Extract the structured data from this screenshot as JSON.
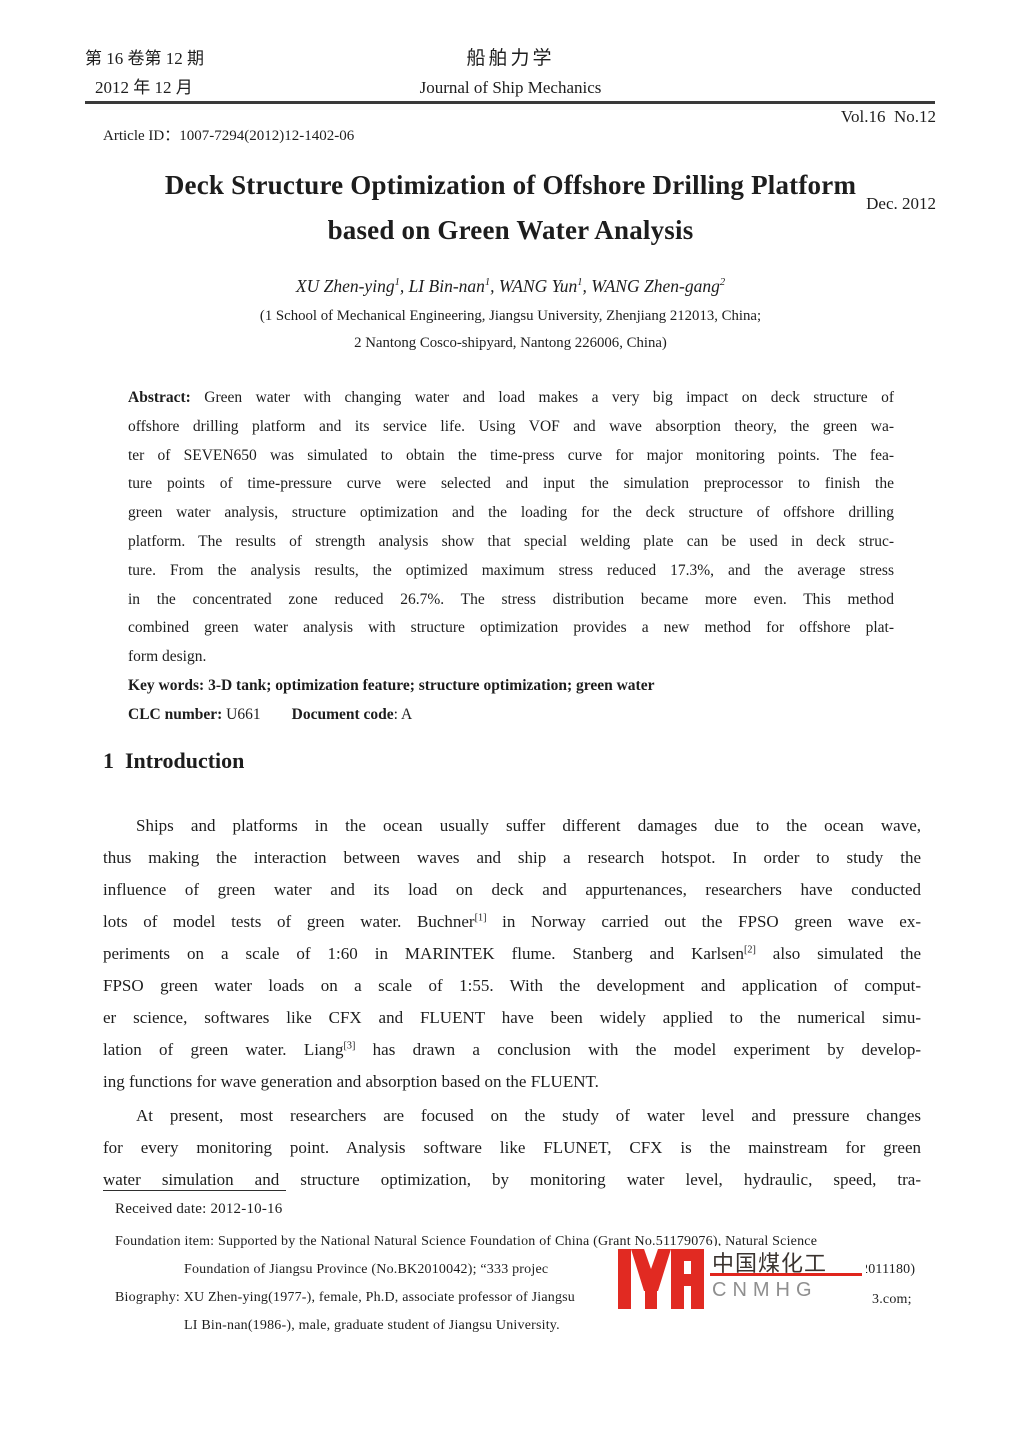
{
  "header": {
    "left_line1": "第 16 卷第 12 期",
    "left_line2": "2012 年 12 月",
    "center_line1": "船舶力学",
    "center_line2": "Journal of Ship Mechanics",
    "right_line1": "Vol.16  No.12",
    "right_line2": "Dec. 2012"
  },
  "article_id": "Article ID：1007-7294(2012)12-1402-06",
  "title_line1": "Deck Structure Optimization of Offshore Drilling Platform",
  "title_line2": "based on Green Water Analysis",
  "authors": "XU Zhen-ying^1^, LI Bin-nan^1^, WANG Yun^1^, WANG Zhen-gang^2^",
  "affiliation1": "(1 School of Mechanical Engineering, Jiangsu University, Zhenjiang 212013, China;",
  "affiliation2": "2 Nantong Cosco-shipyard, Nantong 226006, China)",
  "abstract_lines": [
    {
      "t": "**Abstract:** Green water with changing water and load makes a very big impact on deck structure of"
    },
    "offshore drilling platform and its service life. Using VOF and wave absorption theory, the green wa-",
    "ter of SEVEN650 was simulated to obtain the time-press curve for major monitoring points. The fea-",
    "ture points of time-pressure curve were selected and input the simulation preprocessor to finish the",
    "green water analysis, structure optimization and the loading for the deck structure of offshore drilling",
    "platform. The results of strength analysis show that special welding plate can be used in deck struc-",
    "ture. From the analysis results, the optimized maximum stress reduced 17.3%, and the average stress",
    "in the concentrated zone reduced 26.7%. The stress distribution became more even. This method",
    "combined green water analysis with structure optimization provides a new method for offshore plat-",
    {
      "t": "form design.",
      "j": false
    },
    {
      "t": "**Key words: 3-D tank; optimization feature; structure optimization; green water**",
      "j": false
    },
    {
      "t": "**CLC number:** U661        **Document code**: A",
      "j": false
    }
  ],
  "section1_heading": "1  Introduction",
  "para1_lines": [
    {
      "t": "Ships and platforms in the ocean usually suffer different damages due to the ocean wave,",
      "indent": true
    },
    "thus making the interaction between waves and ship a research hotspot. In order to study the",
    "influence of green water and its load on deck and appurtenances, researchers have conducted",
    "lots of model tests of green water. Buchner^[1]^ in Norway carried out the FPSO green wave ex-",
    "periments on a scale of 1:60 in MARINTEK flume. Stanberg and Karlsen^[2]^ also simulated the",
    "FPSO green water loads on a scale of 1:55. With the development and application of comput-",
    "er science, softwares like CFX and FLUENT have been widely applied to the numerical simu-",
    "lation of green water. Liang^[3]^ has drawn a conclusion with the model experiment by develop-",
    {
      "t": "ing functions for wave generation and absorption based on the FLUENT.",
      "j": false
    }
  ],
  "para2_lines": [
    {
      "t": "At present, most researchers are focused on the study of water level and pressure changes",
      "indent": true
    },
    "for every monitoring point. Analysis software like FLUNET, CFX is the mainstream for green",
    "water simulation and structure optimization, by monitoring water level, hydraulic, speed, tra-"
  ],
  "footnote": {
    "received": "Received date: 2012-10-16",
    "foundation_line1": "Foundation item: Supported by the National Natural Science Foundation of China (Grant No.51179076), Natural Science",
    "foundation_line2_left": "Foundation of Jiangsu Province (No.BK2010042); “333 projec",
    "foundation_line2_right": "2011180)",
    "biography_left": "Biography: XU Zhen-ying(1977-), female, Ph.D, associate professor of Jiangsu",
    "biography_right": "3.com;",
    "biography_line2": "LI Bin-nan(1986-), male, graduate student of Jiangsu University."
  },
  "watermark": {
    "cn_text": "中国煤化工",
    "en_text": "CNMHG",
    "logo_color": "#e12a22",
    "underline_color": "#e0251d",
    "en_color": "#8f8f8f"
  }
}
